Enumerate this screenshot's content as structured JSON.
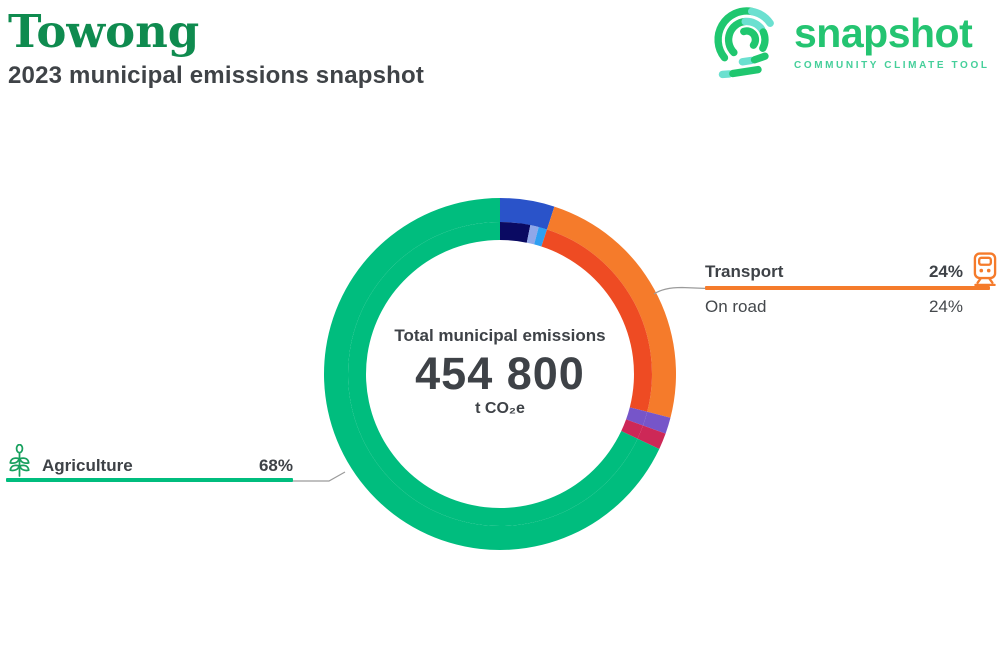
{
  "header": {
    "municipality": "Towong",
    "subtitle": "2023 municipal emissions snapshot"
  },
  "logo": {
    "wordmark": "snapshot",
    "tagline": "COMMUNITY CLIMATE TOOL",
    "wordmark_color": "#24C471",
    "tagline_color": "#45CF9A",
    "icon_green": "#1FC76F",
    "icon_teal": "#6BE0D0"
  },
  "chart_data": {
    "type": "donut",
    "center": {
      "label": "Total municipal emissions",
      "value": "454 800",
      "unit": "t CO₂e"
    },
    "rings": {
      "outer": [
        {
          "label": "",
          "percent": 5,
          "color": "#2A53C9"
        },
        {
          "label": "Transport",
          "percent": 24,
          "color": "#F57B2B"
        },
        {
          "label": "",
          "percent": 1.5,
          "color": "#7655C9"
        },
        {
          "label": "",
          "percent": 1.5,
          "color": "#CD2857"
        },
        {
          "label": "Agriculture",
          "percent": 68,
          "color": "#00BD7E"
        }
      ],
      "inner": [
        {
          "label": "",
          "percent": 3.2,
          "color": "#0A0A62"
        },
        {
          "label": "",
          "percent": 0.9,
          "color": "#8FA7E9"
        },
        {
          "label": "",
          "percent": 0.9,
          "color": "#2E9FF2"
        },
        {
          "label": "On road",
          "percent": 24,
          "color": "#EE4B23"
        },
        {
          "label": "",
          "percent": 1.5,
          "color": "#7655C9"
        },
        {
          "label": "",
          "percent": 1.5,
          "color": "#CD2857"
        },
        {
          "label": "",
          "percent": 68,
          "color": "#00BD7E"
        }
      ]
    },
    "start_angle_deg": 0,
    "direction": "clockwise"
  },
  "callouts": {
    "transport": {
      "label": "Transport",
      "percent": "24%",
      "icon": "train-icon",
      "accent": "#F57B2B",
      "subsectors": [
        {
          "label": "On road",
          "percent": "24%"
        }
      ]
    },
    "agriculture": {
      "label": "Agriculture",
      "percent": "68%",
      "icon": "plant-icon",
      "accent": "#00BD7E"
    }
  },
  "colors": {
    "title_green": "#0F8B4F",
    "text_dark": "#3E4247",
    "connector_gray": "#9B9B9B"
  }
}
